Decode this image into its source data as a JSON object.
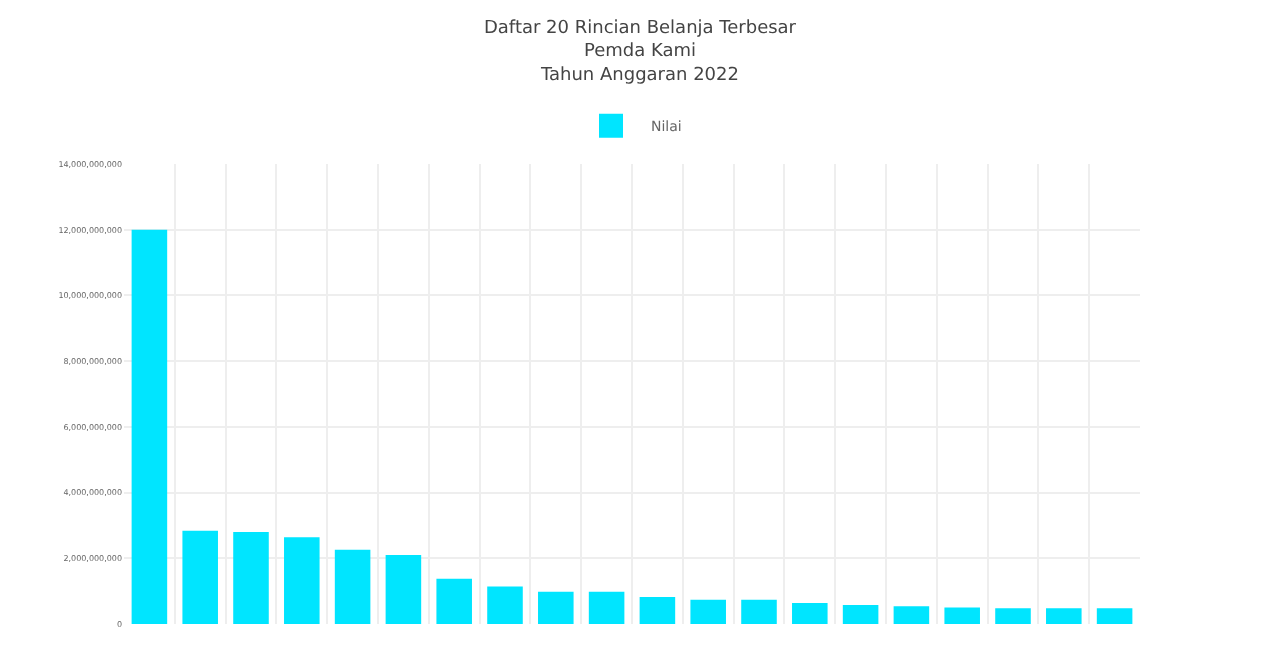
{
  "chart_data": {
    "type": "bar",
    "title": "Daftar 20 Rincian Belanja Terbesar\nPemda Kami\nTahun Anggaran 2022",
    "categories": [
      null,
      null,
      null,
      null,
      null,
      null,
      null,
      null,
      null,
      null,
      null,
      null,
      null,
      null,
      null,
      null,
      null,
      null,
      null,
      null
    ],
    "series": [
      {
        "name": "Nilai",
        "color": "#00e5ff",
        "values": [
          12000000000,
          2840000000,
          2800000000,
          2640000000,
          2260000000,
          2100000000,
          1380000000,
          1140000000,
          980000000,
          980000000,
          820000000,
          740000000,
          740000000,
          640000000,
          580000000,
          540000000,
          500000000,
          480000000,
          480000000,
          480000000
        ]
      }
    ],
    "ylim": [
      0,
      14000000000
    ],
    "yticks": [
      {
        "value": 0,
        "label": "0"
      },
      {
        "value": 2000000000,
        "label": "2,000,000,000"
      },
      {
        "value": 4000000000,
        "label": "4,000,000,000"
      },
      {
        "value": 6000000000,
        "label": "6,000,000,000"
      },
      {
        "value": 8000000000,
        "label": "8,000,000,000"
      },
      {
        "value": 10000000000,
        "label": "10,000,000,000"
      },
      {
        "value": 12000000000,
        "label": "12,000,000,000"
      },
      {
        "value": 14000000000,
        "label": "14,000,000,000"
      }
    ],
    "grid": true,
    "legend": "top"
  }
}
